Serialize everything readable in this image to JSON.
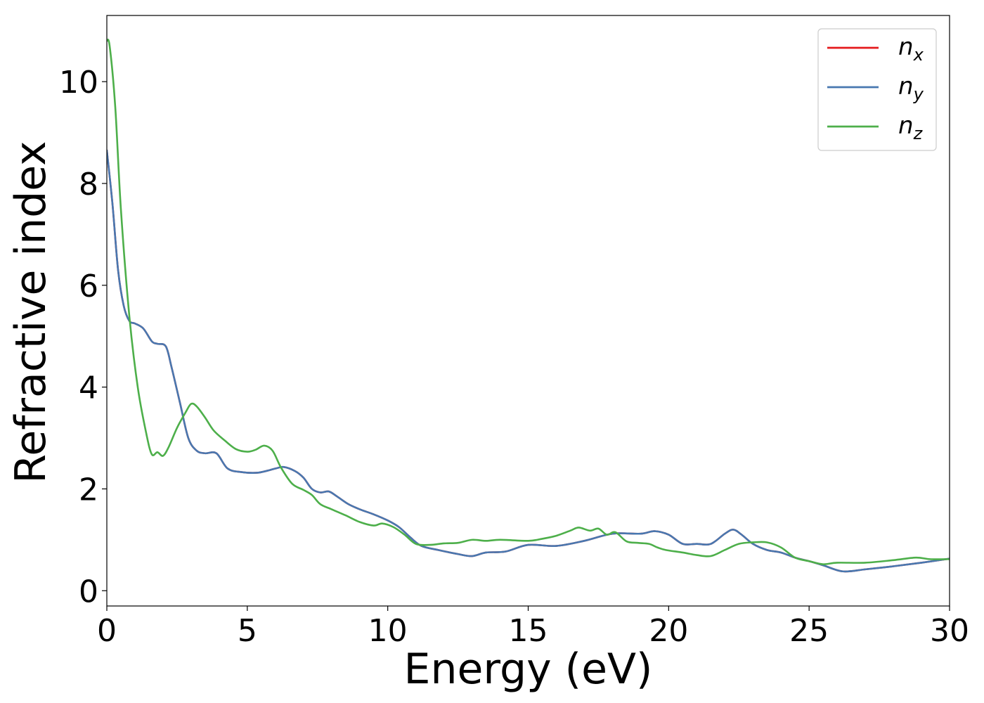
{
  "chart_data": {
    "type": "line",
    "title": "",
    "xlabel": "Energy (eV)",
    "ylabel": "Refractive index",
    "xlim": [
      0,
      30
    ],
    "ylim": [
      -0.3,
      11.3
    ],
    "xticks": [
      0,
      5,
      10,
      15,
      20,
      25,
      30
    ],
    "xtick_labels": [
      "0",
      "5",
      "10",
      "15",
      "20",
      "25",
      "30"
    ],
    "yticks": [
      0,
      2,
      4,
      6,
      8,
      10
    ],
    "ytick_labels": [
      "0",
      "2",
      "4",
      "6",
      "8",
      "10"
    ],
    "grid": false,
    "legend_position": "top-right",
    "series": [
      {
        "name": "n_x",
        "legend_main": "n",
        "legend_sub": "x",
        "color": "#e41a1c",
        "x": [
          0,
          0.2,
          0.4,
          0.6,
          0.8,
          1.0,
          1.3,
          1.6,
          1.8,
          2.1,
          2.3,
          2.6,
          2.9,
          3.2,
          3.5,
          3.9,
          4.3,
          4.8,
          5.4,
          6.0,
          6.3,
          6.7,
          7.0,
          7.3,
          7.6,
          7.9,
          8.2,
          8.6,
          9.0,
          9.5,
          10.0,
          10.4,
          10.8,
          11.2,
          11.8,
          12.5,
          13.0,
          13.5,
          14.2,
          15.0,
          16.0,
          17.0,
          18.0,
          19.0,
          19.5,
          20.0,
          20.5,
          21.0,
          21.5,
          22.0,
          22.3,
          22.6,
          23.0,
          23.5,
          24.0,
          24.5,
          25.0,
          25.5,
          26.2,
          27.0,
          28.0,
          29.0,
          30.0
        ],
        "y": [
          8.65,
          7.6,
          6.3,
          5.6,
          5.3,
          5.25,
          5.15,
          4.9,
          4.85,
          4.8,
          4.4,
          3.7,
          3.0,
          2.75,
          2.7,
          2.7,
          2.4,
          2.33,
          2.32,
          2.4,
          2.43,
          2.35,
          2.22,
          2.0,
          1.93,
          1.95,
          1.85,
          1.7,
          1.6,
          1.5,
          1.38,
          1.25,
          1.05,
          0.88,
          0.8,
          0.72,
          0.68,
          0.75,
          0.77,
          0.9,
          0.88,
          0.98,
          1.12,
          1.12,
          1.17,
          1.1,
          0.92,
          0.92,
          0.92,
          1.12,
          1.2,
          1.1,
          0.92,
          0.8,
          0.75,
          0.65,
          0.58,
          0.5,
          0.38,
          0.42,
          0.48,
          0.55,
          0.63
        ]
      },
      {
        "name": "n_y",
        "legend_main": "n",
        "legend_sub": "y",
        "color": "#4878b0",
        "x": [
          0,
          0.2,
          0.4,
          0.6,
          0.8,
          1.0,
          1.3,
          1.6,
          1.8,
          2.1,
          2.3,
          2.6,
          2.9,
          3.2,
          3.5,
          3.9,
          4.3,
          4.8,
          5.4,
          6.0,
          6.3,
          6.7,
          7.0,
          7.3,
          7.6,
          7.9,
          8.2,
          8.6,
          9.0,
          9.5,
          10.0,
          10.4,
          10.8,
          11.2,
          11.8,
          12.5,
          13.0,
          13.5,
          14.2,
          15.0,
          16.0,
          17.0,
          18.0,
          19.0,
          19.5,
          20.0,
          20.5,
          21.0,
          21.5,
          22.0,
          22.3,
          22.6,
          23.0,
          23.5,
          24.0,
          24.5,
          25.0,
          25.5,
          26.2,
          27.0,
          28.0,
          29.0,
          30.0
        ],
        "y": [
          8.65,
          7.6,
          6.3,
          5.6,
          5.3,
          5.25,
          5.15,
          4.9,
          4.85,
          4.8,
          4.4,
          3.7,
          3.0,
          2.75,
          2.7,
          2.7,
          2.4,
          2.33,
          2.32,
          2.4,
          2.43,
          2.35,
          2.22,
          2.0,
          1.93,
          1.95,
          1.85,
          1.7,
          1.6,
          1.5,
          1.38,
          1.25,
          1.05,
          0.88,
          0.8,
          0.72,
          0.68,
          0.75,
          0.77,
          0.9,
          0.88,
          0.98,
          1.12,
          1.12,
          1.17,
          1.1,
          0.92,
          0.92,
          0.92,
          1.12,
          1.2,
          1.1,
          0.92,
          0.8,
          0.75,
          0.65,
          0.58,
          0.5,
          0.38,
          0.42,
          0.48,
          0.55,
          0.63
        ]
      },
      {
        "name": "n_z",
        "legend_main": "n",
        "legend_sub": "z",
        "color": "#4daf4a",
        "x": [
          0,
          0.1,
          0.3,
          0.5,
          0.8,
          1.1,
          1.4,
          1.6,
          1.8,
          2.0,
          2.2,
          2.5,
          2.8,
          3.0,
          3.2,
          3.5,
          3.8,
          4.2,
          4.6,
          5.0,
          5.3,
          5.6,
          5.9,
          6.2,
          6.6,
          7.0,
          7.3,
          7.6,
          8.0,
          8.5,
          9.0,
          9.5,
          9.8,
          10.2,
          10.6,
          11.0,
          11.5,
          12.0,
          12.5,
          13.0,
          13.5,
          14.0,
          15.0,
          15.5,
          16.0,
          16.5,
          16.8,
          17.2,
          17.5,
          17.8,
          18.1,
          18.5,
          18.9,
          19.3,
          19.6,
          19.9,
          20.5,
          21.0,
          21.5,
          22.0,
          22.5,
          23.0,
          23.5,
          24.0,
          24.5,
          25.0,
          25.5,
          26.0,
          27.0,
          28.0,
          28.8,
          29.3,
          30.0
        ],
        "y": [
          10.8,
          10.7,
          9.5,
          7.5,
          5.4,
          4.0,
          3.1,
          2.68,
          2.72,
          2.65,
          2.82,
          3.2,
          3.5,
          3.67,
          3.62,
          3.4,
          3.15,
          2.95,
          2.78,
          2.73,
          2.77,
          2.85,
          2.75,
          2.42,
          2.1,
          1.98,
          1.88,
          1.7,
          1.6,
          1.48,
          1.35,
          1.28,
          1.32,
          1.25,
          1.1,
          0.92,
          0.9,
          0.93,
          0.94,
          1.0,
          0.98,
          1.0,
          0.98,
          1.02,
          1.08,
          1.18,
          1.24,
          1.18,
          1.22,
          1.1,
          1.15,
          0.97,
          0.94,
          0.92,
          0.85,
          0.8,
          0.75,
          0.7,
          0.68,
          0.8,
          0.92,
          0.95,
          0.95,
          0.85,
          0.65,
          0.58,
          0.52,
          0.55,
          0.55,
          0.6,
          0.65,
          0.62,
          0.62
        ]
      }
    ]
  }
}
